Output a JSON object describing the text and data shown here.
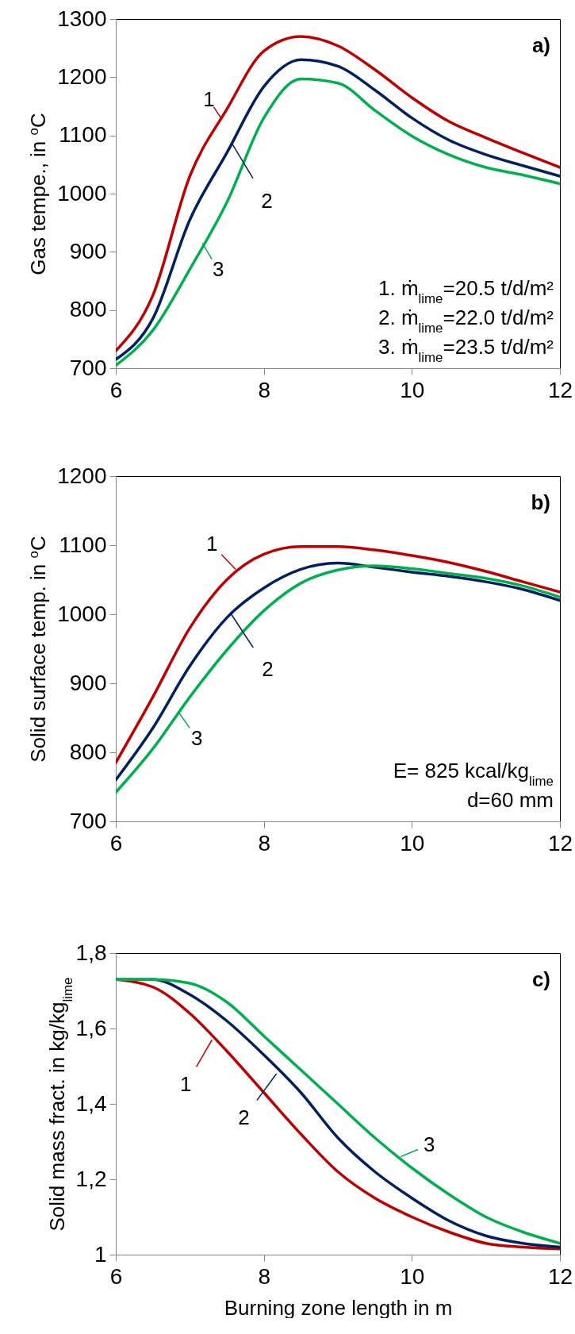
{
  "chart_data": [
    {
      "type": "line",
      "ylabel": "Gas tempe., in $^{o}$C",
      "x": [
        6,
        6.5,
        7,
        7.5,
        8,
        8.5,
        9,
        9.5,
        10,
        10.5,
        11,
        11.5,
        12
      ],
      "xlim": [
        6,
        12
      ],
      "xticks": [
        6,
        8,
        10,
        12
      ],
      "ylim": [
        700,
        1300
      ],
      "yticks": [
        700,
        800,
        900,
        1000,
        1100,
        1200,
        1300
      ],
      "series": [
        {
          "color": "#c00000",
          "values": [
            730,
            825,
            1030,
            1145,
            1245,
            1270,
            1254,
            1213,
            1165,
            1124,
            1096,
            1070,
            1045
          ]
        },
        {
          "color": "#002060",
          "values": [
            715,
            785,
            955,
            1070,
            1184,
            1230,
            1219,
            1178,
            1130,
            1092,
            1067,
            1048,
            1030
          ]
        },
        {
          "color": "#00b050",
          "values": [
            705,
            765,
            870,
            985,
            1130,
            1197,
            1190,
            1143,
            1099,
            1067,
            1045,
            1032,
            1017
          ]
        }
      ],
      "annotations": [
        "a)",
        "1. ṁ$_{lime}$=20.5 t/d/m²",
        "2. ṁ$_{lime}$=22.0 t/d/m²",
        "3. ṁ$_{lime}$=23.5 t/d/m²",
        {
          "text": "1",
          "x": 7.42,
          "y": 1130
        },
        {
          "text": "2",
          "x": 7.57,
          "y": 1086
        },
        {
          "text": "3",
          "x": 7.17,
          "y": 915
        }
      ]
    },
    {
      "type": "line",
      "ylabel": "Solid surface temp. in $^{o}$C",
      "x": [
        6,
        6.5,
        7,
        7.5,
        8,
        8.5,
        9,
        9.5,
        10,
        10.5,
        11,
        11.5,
        12
      ],
      "xlim": [
        6,
        12
      ],
      "xticks": [
        6,
        8,
        10,
        12
      ],
      "ylim": [
        700,
        1200
      ],
      "yticks": [
        700,
        800,
        900,
        1000,
        1100,
        1200
      ],
      "series": [
        {
          "color": "#c00000",
          "values": [
            785,
            880,
            980,
            1050,
            1087,
            1098,
            1098,
            1093,
            1085,
            1075,
            1062,
            1047,
            1032
          ]
        },
        {
          "color": "#002060",
          "values": [
            760,
            835,
            925,
            995,
            1038,
            1065,
            1074,
            1068,
            1061,
            1055,
            1047,
            1036,
            1020
          ]
        },
        {
          "color": "#00b050",
          "values": [
            742,
            805,
            880,
            948,
            1005,
            1045,
            1064,
            1070,
            1066,
            1059,
            1052,
            1041,
            1025
          ]
        }
      ],
      "annotations": [
        "b)",
        "E= 825 kcal/kg$_{lime}$",
        "d=60 mm",
        {
          "text": "1",
          "x": 7.62,
          "y": 1065
        },
        {
          "text": "2",
          "x": 7.56,
          "y": 1000
        },
        {
          "text": "3",
          "x": 6.85,
          "y": 858
        }
      ]
    },
    {
      "type": "line",
      "xlabel": "Burning zone length in m",
      "ylabel": "Solid mass fract. in kg/kg$_{lime}$",
      "x": [
        6,
        6.5,
        7,
        7.5,
        8,
        8.5,
        9,
        9.5,
        10,
        10.5,
        11,
        11.5,
        12
      ],
      "xlim": [
        6,
        12
      ],
      "xticks": [
        6,
        8,
        10,
        12
      ],
      "ylim": [
        1,
        1.8
      ],
      "yticks": [
        1,
        {
          "value": 1.2,
          "label": "1,2"
        },
        {
          "value": 1.4,
          "label": "1,4"
        },
        {
          "value": 1.6,
          "label": "1,6"
        },
        {
          "value": 1.8,
          "label": "1,8"
        }
      ],
      "series": [
        {
          "color": "#c00000",
          "values": [
            1.73,
            1.71,
            1.64,
            1.54,
            1.43,
            1.32,
            1.22,
            1.15,
            1.1,
            1.06,
            1.03,
            1.02,
            1.015
          ]
        },
        {
          "color": "#002060",
          "values": [
            1.73,
            1.73,
            1.69,
            1.62,
            1.53,
            1.43,
            1.31,
            1.22,
            1.15,
            1.09,
            1.05,
            1.03,
            1.02
          ]
        },
        {
          "color": "#00b050",
          "values": [
            1.73,
            1.73,
            1.72,
            1.67,
            1.58,
            1.49,
            1.4,
            1.31,
            1.23,
            1.16,
            1.1,
            1.06,
            1.03
          ]
        }
      ],
      "annotations": [
        "c)",
        {
          "text": "1",
          "x": 7.3,
          "y": 1.57
        },
        {
          "text": "2",
          "x": 8.17,
          "y": 1.48
        },
        {
          "text": "3",
          "x": 9.85,
          "y": 1.26
        }
      ]
    }
  ]
}
